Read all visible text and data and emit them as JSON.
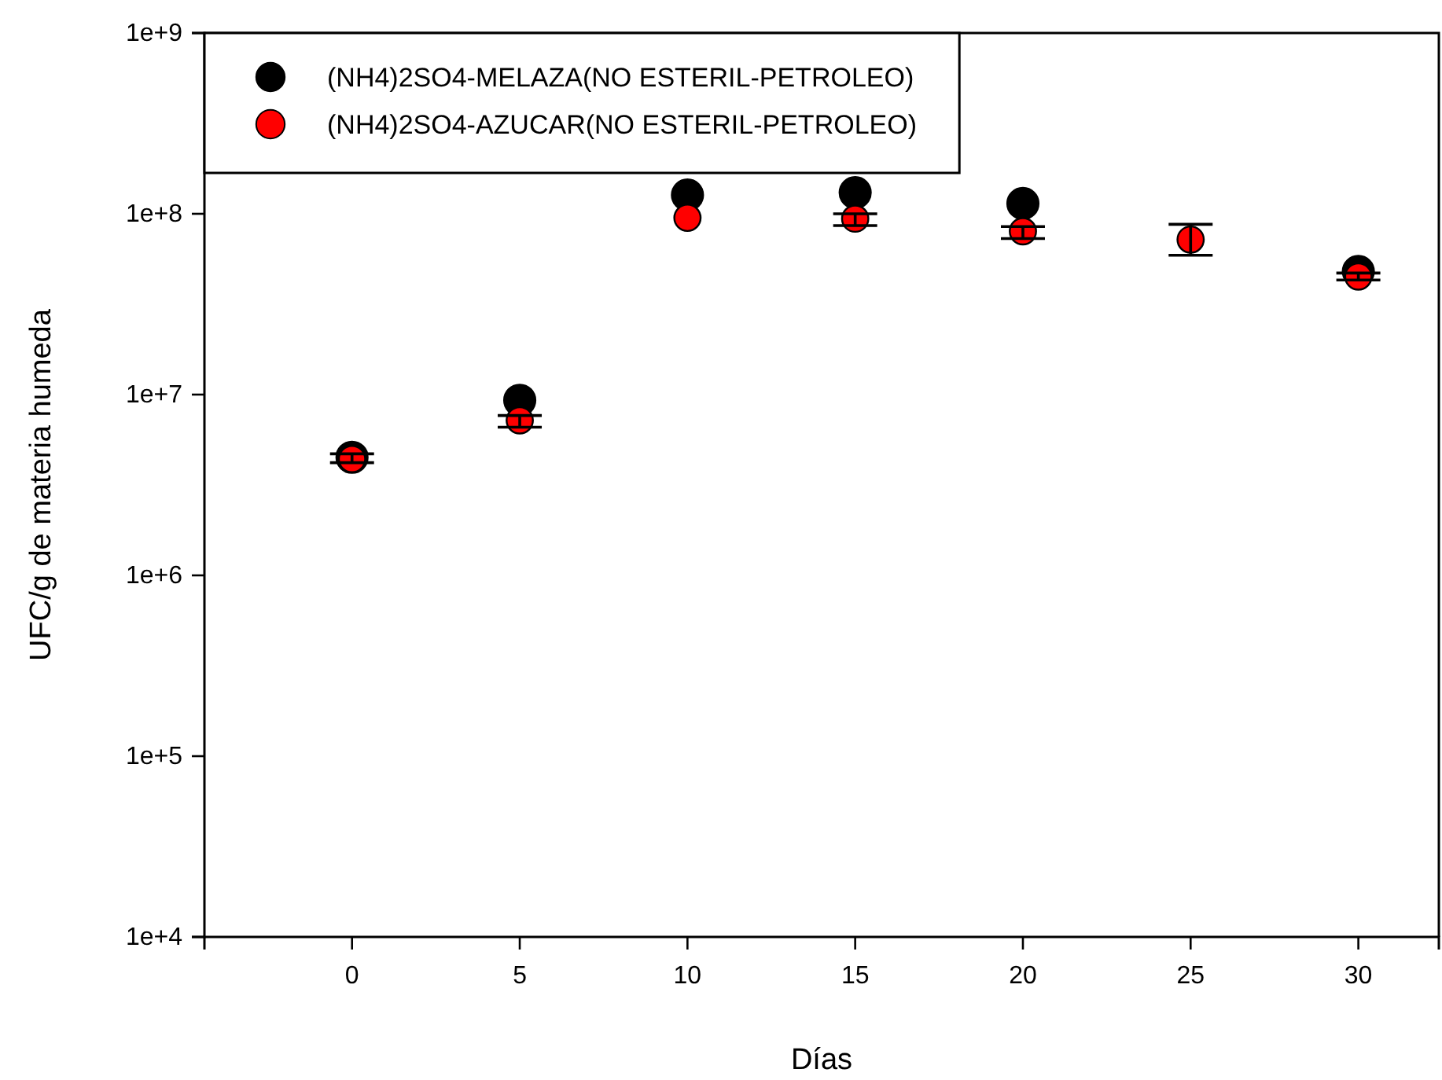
{
  "chart_data": {
    "type": "scatter",
    "xlabel": "Días",
    "ylabel": "UFC/g de materia humeda",
    "x": [
      0,
      5,
      10,
      15,
      20,
      25,
      30
    ],
    "log": "y",
    "xlim": [
      -4.4,
      32.4
    ],
    "ylim": [
      10000,
      1000000000
    ],
    "xticks": [
      0,
      5,
      10,
      15,
      20,
      25,
      30
    ],
    "yticks": [
      {
        "value": 10000,
        "label": "1e+4"
      },
      {
        "value": 100000,
        "label": "1e+5"
      },
      {
        "value": 1000000,
        "label": "1e+6"
      },
      {
        "value": 10000000,
        "label": "1e+7"
      },
      {
        "value": 100000000,
        "label": "1e+8"
      },
      {
        "value": 1000000000,
        "label": "1e+9"
      }
    ],
    "marker": "circle",
    "legend": "top left",
    "grid": false,
    "series": [
      {
        "name": "(NH4)2SO4-MELAZA(NO ESTERIL-PETROLEO)",
        "color": "#000000",
        "values": [
          4500000,
          9300000,
          127000000,
          131000000,
          114000000,
          null,
          48000000
        ]
      },
      {
        "name": "(NH4)2SO4-AZUCAR(NO ESTERIL-PETROLEO)",
        "color": "#ff0000",
        "values": [
          4400000,
          7200000,
          95000000,
          94000000,
          80000000,
          72000000,
          45000000
        ],
        "errors": [
          [
            4200000,
            4700000
          ],
          [
            6600000,
            7660000
          ],
          null,
          [
            86000000,
            100000000
          ],
          [
            73000000,
            85000000
          ],
          [
            59000000,
            87500000
          ],
          [
            43000000,
            47000000
          ]
        ]
      }
    ]
  }
}
